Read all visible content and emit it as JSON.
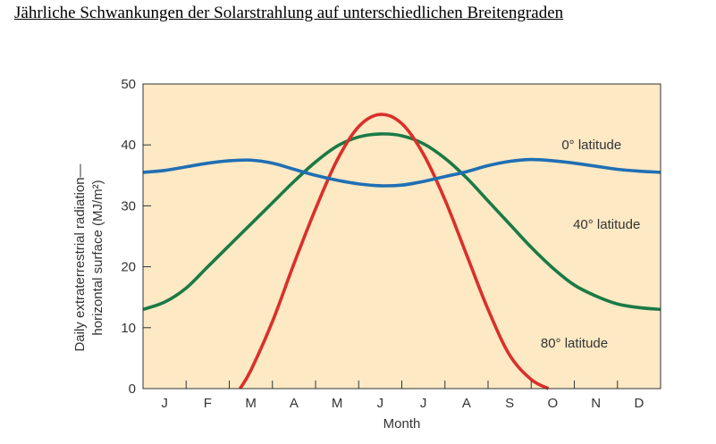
{
  "chart_data": {
    "type": "line",
    "title": "Jährliche Schwankungen der Solarstrahlung auf unterschiedlichen Breitengraden",
    "xlabel": "Month",
    "ylabel": "Daily extraterrestrial radiation—horizontal surface (MJ/m²)",
    "ylabel_line1": "Daily extraterrestrial radiation—",
    "ylabel_line2": "horizontal surface (MJ/m²)",
    "ylim": [
      0,
      50
    ],
    "xlim": [
      0.5,
      12.5
    ],
    "yticks": [
      "0",
      "10",
      "20",
      "30",
      "40",
      "50"
    ],
    "categories": [
      "J",
      "F",
      "M",
      "A",
      "M",
      "J",
      "J",
      "A",
      "S",
      "O",
      "N",
      "D"
    ],
    "grid": false,
    "background": "#fde9c4",
    "series": [
      {
        "name": "0° latitude",
        "color": "#1f6fb4",
        "x": [
          0.5,
          1,
          1.5,
          2,
          2.5,
          3,
          3.5,
          4,
          4.5,
          5,
          5.5,
          6,
          6.5,
          7,
          7.5,
          8,
          8.5,
          9,
          9.5,
          10,
          10.5,
          11,
          11.5,
          12,
          12.5
        ],
        "values": [
          35.5,
          35.8,
          36.4,
          37.0,
          37.4,
          37.5,
          37.0,
          36.0,
          35.0,
          34.2,
          33.6,
          33.3,
          33.4,
          34.0,
          34.8,
          35.6,
          36.6,
          37.3,
          37.6,
          37.4,
          37.0,
          36.5,
          36.0,
          35.7,
          35.5
        ]
      },
      {
        "name": "40° latitude",
        "color": "#1a7a45",
        "x": [
          0.5,
          1,
          1.5,
          2,
          2.5,
          3,
          3.5,
          4,
          4.5,
          5,
          5.5,
          6,
          6.5,
          7,
          7.5,
          8,
          8.5,
          9,
          9.5,
          10,
          10.5,
          11,
          11.5,
          12,
          12.5
        ],
        "values": [
          13.0,
          14.2,
          16.5,
          20.0,
          23.5,
          27.0,
          30.5,
          34.0,
          37.2,
          39.8,
          41.3,
          41.8,
          41.5,
          40.2,
          37.8,
          34.6,
          30.8,
          27.0,
          23.2,
          19.8,
          17.0,
          15.2,
          13.9,
          13.3,
          13.0
        ]
      },
      {
        "name": "80° latitude",
        "color": "#d9302b",
        "x": [
          2.75,
          3,
          3.5,
          4,
          4.5,
          5,
          5.5,
          6,
          6.5,
          7,
          7.5,
          8,
          8.5,
          9,
          9.5,
          9.9
        ],
        "values": [
          0,
          3.0,
          11.0,
          20.5,
          29.5,
          37.5,
          43.0,
          45.0,
          43.5,
          38.5,
          31.0,
          22.0,
          13.0,
          5.5,
          1.5,
          0
        ]
      }
    ],
    "annotations": [
      {
        "text": "0° latitude",
        "x": 10.9,
        "y": 40
      },
      {
        "text": "40° latitude",
        "x": 11.25,
        "y": 27
      },
      {
        "text": "80° latitude",
        "x": 10.5,
        "y": 7.5
      }
    ]
  }
}
